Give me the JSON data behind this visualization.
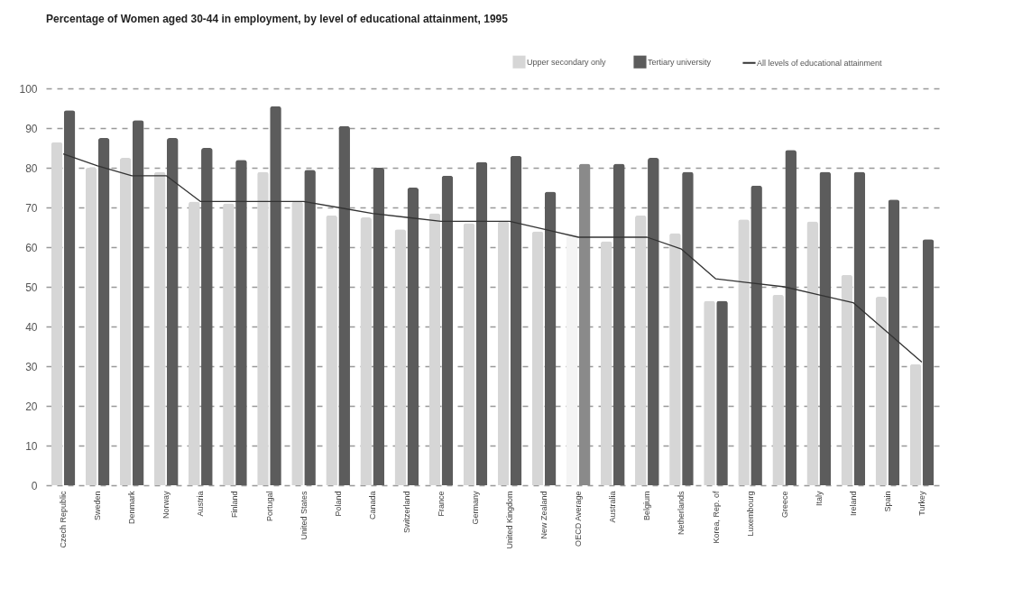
{
  "chart_data": {
    "type": "bar",
    "title": "Percentage of Women aged 30-44 in employment, by level of educational attainment, 1995",
    "categories": [
      "Czech Republic",
      "Sweden",
      "Denmark",
      "Norway",
      "Austria",
      "Finland",
      "Portugal",
      "United States",
      "Poland",
      "Canada",
      "Switzerland",
      "France",
      "Germany",
      "United Kingdom",
      "New Zealand",
      "OECD Average",
      "Australia",
      "Belgium",
      "Netherlands",
      "Korea, Rep. of",
      "Luxembourg",
      "Greece",
      "Italy",
      "Ireland",
      "Spain",
      "Turkey"
    ],
    "series": [
      {
        "name": "Upper secondary only",
        "color": "#d6d6d6",
        "colors": [
          "#d6d6d6",
          "#d6d6d6",
          "#d6d6d6",
          "#d6d6d6",
          "#d6d6d6",
          "#d6d6d6",
          "#d6d6d6",
          "#d6d6d6",
          "#d6d6d6",
          "#d6d6d6",
          "#d6d6d6",
          "#d6d6d6",
          "#d6d6d6",
          "#d6d6d6",
          "#d6d6d6",
          "#f4f4f4",
          "#d6d6d6",
          "#d6d6d6",
          "#d6d6d6",
          "#d6d6d6",
          "#d6d6d6",
          "#d6d6d6",
          "#d6d6d6",
          "#d6d6d6",
          "#d6d6d6",
          "#d6d6d6"
        ],
        "values": [
          86.5,
          80,
          82.5,
          79,
          71.5,
          71,
          79,
          71.5,
          68,
          67.5,
          64.5,
          68.5,
          66,
          66.5,
          64,
          63.5,
          61.5,
          68,
          63.5,
          46.5,
          67,
          48,
          66.5,
          53,
          47.5,
          30.5
        ]
      },
      {
        "name": "Tertiary university",
        "color": "#5c5c5c",
        "colors": [
          "#5c5c5c",
          "#5c5c5c",
          "#5c5c5c",
          "#5c5c5c",
          "#5c5c5c",
          "#5c5c5c",
          "#5c5c5c",
          "#5c5c5c",
          "#5c5c5c",
          "#5c5c5c",
          "#5c5c5c",
          "#5c5c5c",
          "#5c5c5c",
          "#5c5c5c",
          "#5c5c5c",
          "#8a8a8a",
          "#5c5c5c",
          "#5c5c5c",
          "#5c5c5c",
          "#5c5c5c",
          "#5c5c5c",
          "#5c5c5c",
          "#5c5c5c",
          "#5c5c5c",
          "#5c5c5c",
          "#5c5c5c"
        ],
        "values": [
          94.5,
          87.5,
          92,
          87.5,
          85,
          82,
          95.5,
          79.5,
          90.5,
          80,
          75,
          78,
          81.5,
          83,
          74,
          81,
          81,
          82.5,
          79,
          46.5,
          75.5,
          84.5,
          79,
          79,
          72,
          62
        ]
      },
      {
        "name": "All levels of educational attainment",
        "type": "line",
        "color": "#333333",
        "values": [
          83.5,
          80.5,
          78,
          78,
          71.5,
          71.5,
          71.5,
          71.5,
          70,
          68.5,
          67.5,
          66.5,
          66.5,
          66.5,
          64.5,
          62.5,
          62.5,
          62.5,
          59.5,
          52,
          51,
          50,
          48,
          46,
          38.5,
          31
        ]
      }
    ],
    "ylim": [
      0,
      100
    ],
    "yticks": [
      0,
      10,
      20,
      30,
      40,
      50,
      60,
      70,
      80,
      90,
      100
    ],
    "grid": "y",
    "legend": "top right",
    "marker": "none",
    "line_style": "solid"
  }
}
